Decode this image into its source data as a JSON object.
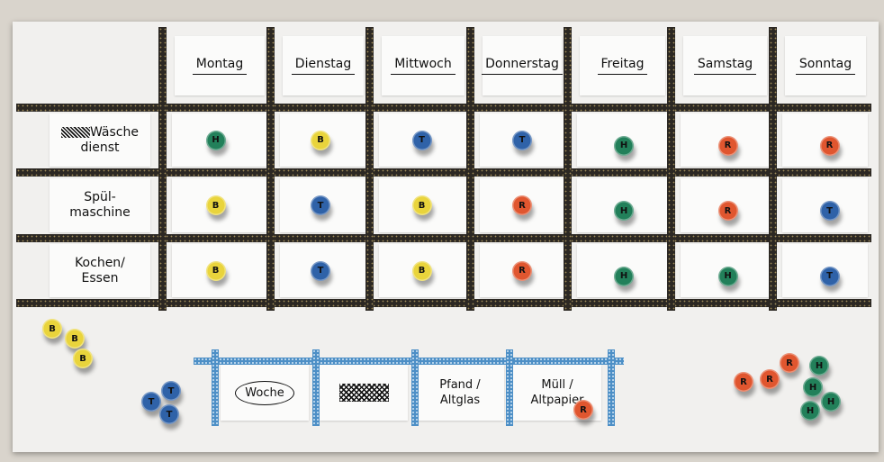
{
  "colors": {
    "B": "#e9d43c",
    "T": "#2f62a8",
    "H": "#22805a",
    "R": "#e0562f"
  },
  "days": [
    "Montag",
    "Dienstag",
    "Mittwoch",
    "Donnerstag",
    "Freitag",
    "Samstag",
    "Sonntag"
  ],
  "tasks": [
    {
      "crossed": true,
      "label_line1": "Wäsche",
      "label_line2": "dienst",
      "assign": [
        "H",
        "B",
        "T",
        "T",
        "H",
        "R",
        "R"
      ]
    },
    {
      "label_line1": "Spül-",
      "label_line2": "maschine",
      "assign": [
        "B",
        "T",
        "B",
        "R",
        "H",
        "R",
        "T"
      ]
    },
    {
      "label_line1": "Kochen/",
      "label_line2": "Essen",
      "assign": [
        "B",
        "T",
        "B",
        "R",
        "H",
        "H",
        "T"
      ]
    }
  ],
  "bottom": {
    "week": "Woche",
    "pfand": "Pfand / Altglas",
    "muell": "Müll / Altpapier"
  },
  "loose_magnets": {
    "left": [
      "B",
      "B",
      "B",
      "T",
      "T",
      "T"
    ],
    "muell_card": [
      "R"
    ],
    "right": [
      "R",
      "R",
      "R",
      "H",
      "H",
      "H",
      "H"
    ]
  }
}
